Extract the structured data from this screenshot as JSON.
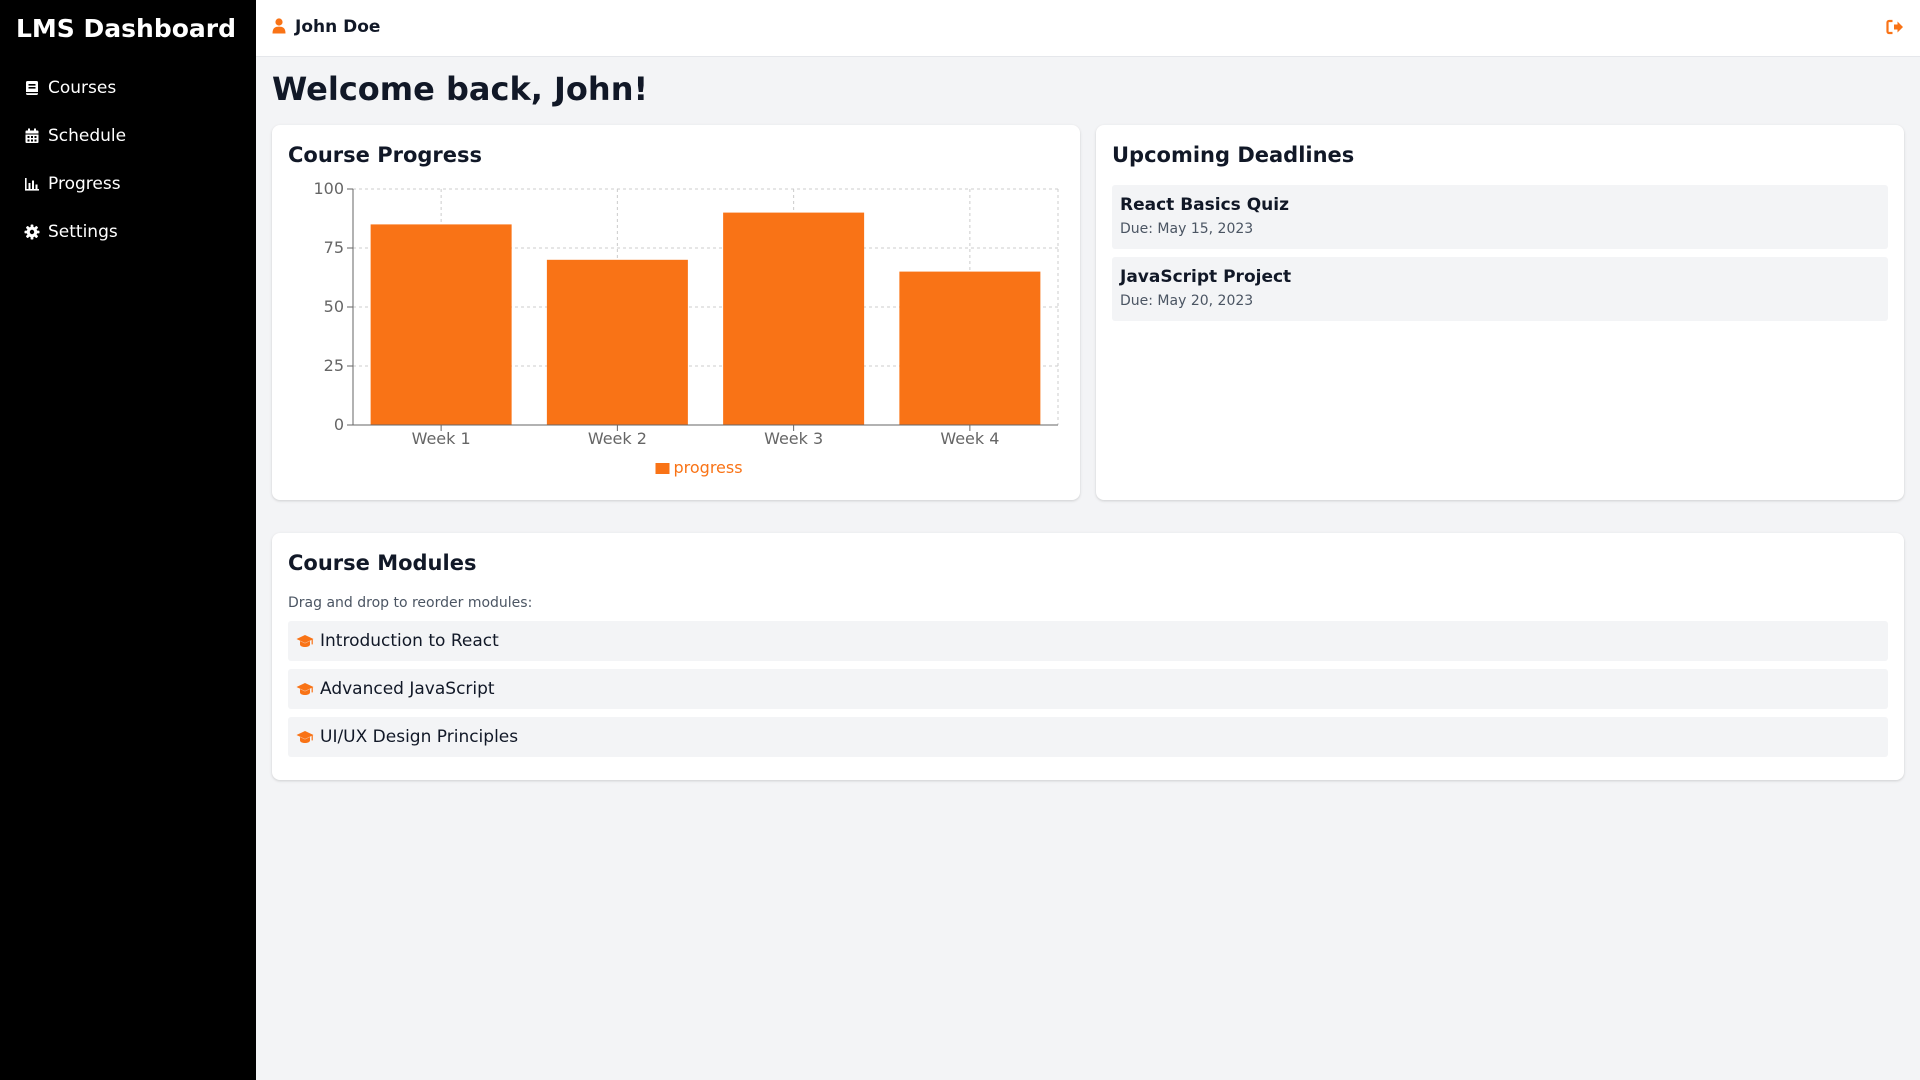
{
  "app": {
    "title": "LMS Dashboard",
    "accent_color": "#f97316"
  },
  "sidebar": {
    "items": [
      {
        "label": "Courses",
        "icon": "book-icon"
      },
      {
        "label": "Schedule",
        "icon": "calendar-icon"
      },
      {
        "label": "Progress",
        "icon": "bar-chart-icon"
      },
      {
        "label": "Settings",
        "icon": "gear-icon"
      }
    ]
  },
  "header": {
    "user_name": "John Doe",
    "user_icon": "user-icon",
    "logout_icon": "sign-out-icon"
  },
  "main": {
    "welcome": "Welcome back, John!"
  },
  "progress_card": {
    "title": "Course Progress"
  },
  "chart_data": {
    "type": "bar",
    "title": "",
    "xlabel": "",
    "ylabel": "",
    "categories": [
      "Week 1",
      "Week 2",
      "Week 3",
      "Week 4"
    ],
    "series": [
      {
        "name": "progress",
        "values": [
          85,
          70,
          90,
          65
        ],
        "color": "#f97316"
      }
    ],
    "ylim": [
      0,
      100
    ],
    "yticks": [
      0,
      25,
      50,
      75,
      100
    ],
    "grid": true,
    "legend": "bottom"
  },
  "deadlines": {
    "title": "Upcoming Deadlines",
    "items": [
      {
        "title": "React Basics Quiz",
        "due": "Due: May 15, 2023"
      },
      {
        "title": "JavaScript Project",
        "due": "Due: May 20, 2023"
      }
    ]
  },
  "modules": {
    "title": "Course Modules",
    "hint": "Drag and drop to reorder modules:",
    "icon": "graduation-cap-icon",
    "items": [
      {
        "label": "Introduction to React"
      },
      {
        "label": "Advanced JavaScript"
      },
      {
        "label": "UI/UX Design Principles"
      }
    ]
  }
}
